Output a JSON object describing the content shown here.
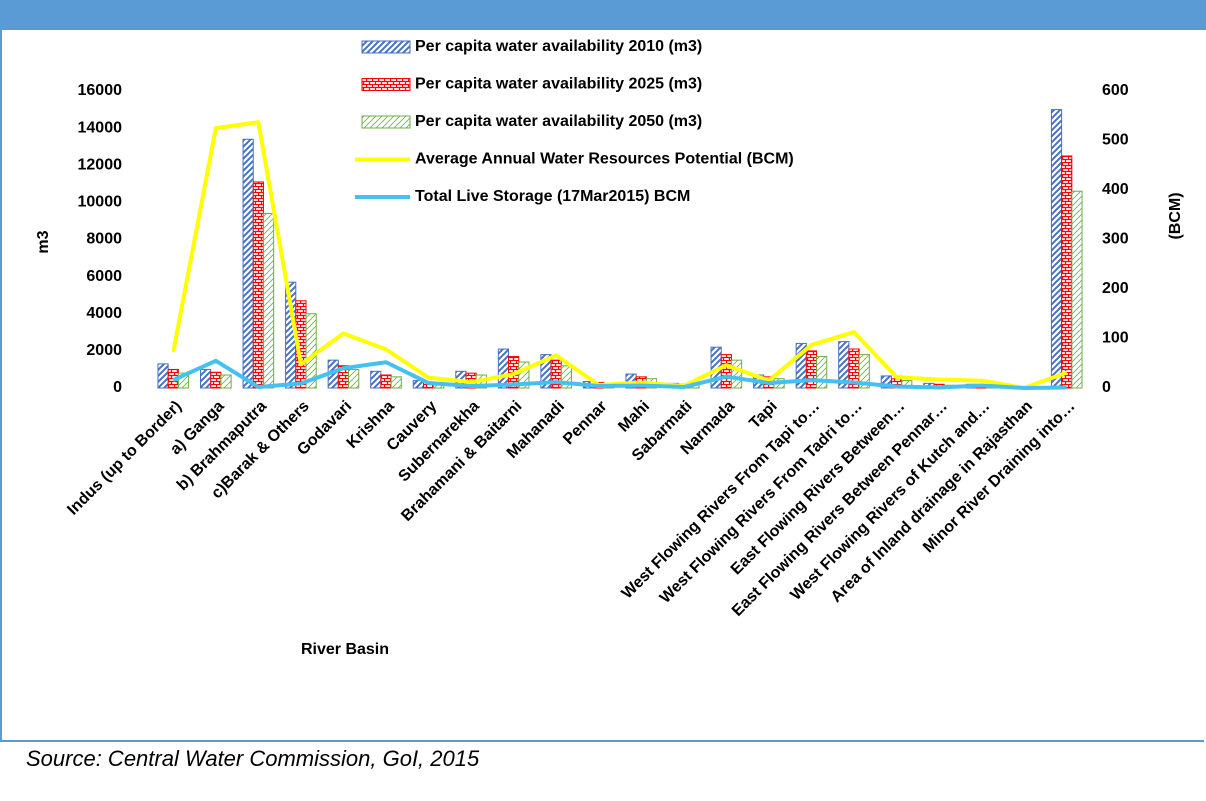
{
  "chart_data": {
    "type": "bar",
    "x_label": "River Basin",
    "y_label": "m3",
    "y2_label": "(BCM)",
    "categories": [
      "Indus (up to Border)",
      "a) Ganga",
      "b) Brahmaputra",
      "c)Barak & Others",
      "Godavari",
      "Krishna",
      "Cauvery",
      "Subernarekha",
      "Brahamani & Baitarni",
      "Mahanadi",
      "Pennar",
      "Mahi",
      "Sabarmati",
      "Narmada",
      "Tapi",
      "West Flowing Rivers From Tapi to…",
      "West Flowing Rivers From Tadri to…",
      "East Flowing Rivers Between…",
      "East Flowing Rivers Between Pennar…",
      "West Flowing Rivers of Kutch and…",
      "Area of Inland drainage in Rajasthan",
      "Minor River Draining into…"
    ],
    "series": [
      {
        "name": "Per capita water availability 2010 (m3)",
        "color": "#4472c4",
        "pattern": "diagonal",
        "values": [
          1300,
          1000,
          13400,
          5700,
          1500,
          900,
          400,
          900,
          2100,
          1800,
          350,
          750,
          250,
          2200,
          700,
          2400,
          2500,
          650,
          250,
          200,
          0,
          15000
        ]
      },
      {
        "name": "Per capita water availability 2025 (m3)",
        "color": "#ff0000",
        "pattern": "brick",
        "values": [
          1000,
          850,
          11100,
          4700,
          1200,
          700,
          300,
          800,
          1700,
          1500,
          300,
          600,
          200,
          1800,
          600,
          2000,
          2100,
          500,
          200,
          150,
          0,
          12500
        ]
      },
      {
        "name": "Per capita water availability 2050 (m3)",
        "color": "#70ad47",
        "pattern": "thin-diagonal",
        "values": [
          800,
          700,
          9400,
          4000,
          1000,
          600,
          250,
          700,
          1400,
          1200,
          250,
          500,
          150,
          1500,
          500,
          1700,
          1800,
          400,
          150,
          100,
          0,
          10600
        ]
      },
      {
        "name": "Average Annual Water Resources Potential (BCM)",
        "color": "#ffff00",
        "type": "line",
        "axis": "y2",
        "values": [
          73,
          525,
          537,
          48,
          110,
          78,
          21,
          12,
          28,
          66,
          6,
          11,
          4,
          46,
          15,
          87,
          113,
          22,
          17,
          15,
          0,
          31
        ]
      },
      {
        "name": "Total Live Storage (17Mar2015) BCM",
        "color": "#45c0f0",
        "type": "line",
        "axis": "y2",
        "values": [
          16,
          55,
          2,
          9,
          40,
          52,
          10,
          4,
          7,
          12,
          4,
          5,
          2,
          23,
          10,
          16,
          11,
          3,
          1,
          5,
          0,
          1
        ]
      }
    ],
    "ylim": [
      0,
      16000
    ],
    "yticks": [
      0,
      2000,
      4000,
      6000,
      8000,
      10000,
      12000,
      14000,
      16000
    ],
    "y2lim": [
      0,
      600
    ],
    "y2ticks": [
      0,
      100,
      200,
      300,
      400,
      500,
      600
    ],
    "grid": false,
    "legend": "top"
  },
  "source": "Source: Central Water Commission, GoI, 2015"
}
